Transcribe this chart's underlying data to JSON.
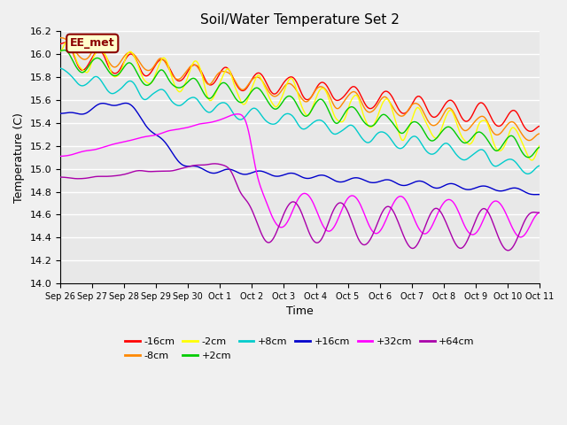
{
  "title": "Soil/Water Temperature Set 2",
  "xlabel": "Time",
  "ylabel": "Temperature (C)",
  "ylim": [
    14.0,
    16.2
  ],
  "annotation": "EE_met",
  "background_color": "#e8e8e8",
  "grid_color": "#ffffff",
  "series": [
    {
      "label": "-16cm",
      "color": "#ff0000"
    },
    {
      "label": "-8cm",
      "color": "#ff8800"
    },
    {
      "label": "-2cm",
      "color": "#ffff00"
    },
    {
      "label": "+2cm",
      "color": "#00cc00"
    },
    {
      "label": "+8cm",
      "color": "#00cccc"
    },
    {
      "label": "+16cm",
      "color": "#0000cc"
    },
    {
      "label": "+32cm",
      "color": "#ff00ff"
    },
    {
      "label": "+64cm",
      "color": "#aa00aa"
    }
  ],
  "xtick_labels": [
    "Sep 26",
    "Sep 27",
    "Sep 28",
    "Sep 29",
    "Sep 30",
    "Oct 1",
    "Oct 2",
    "Oct 3",
    "Oct 4",
    "Oct 5",
    "Oct 6",
    "Oct 7",
    "Oct 8",
    "Oct 9",
    "Oct 10",
    "Oct 11"
  ],
  "n_points": 360,
  "start_day": 0,
  "end_day": 15
}
